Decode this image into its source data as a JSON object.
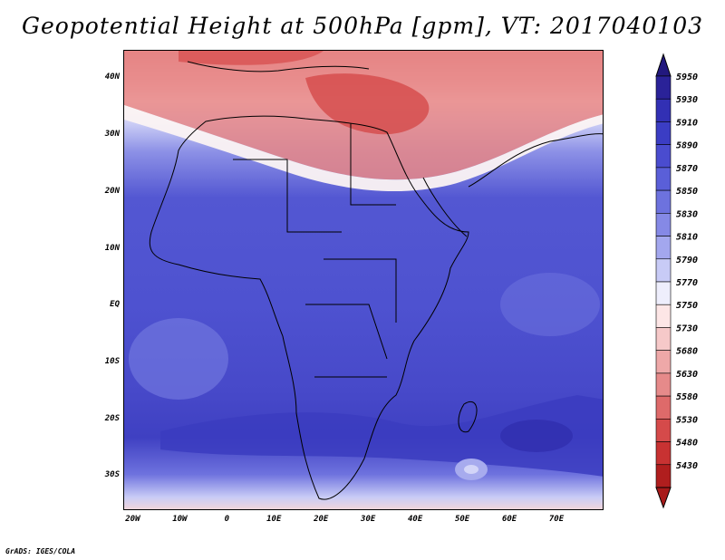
{
  "title": "Geopotential Height at 500hPa [gpm], VT: 2017040103",
  "credit": "GrADS: IGES/COLA",
  "lat_labels": [
    "40N",
    "30N",
    "20N",
    "10N",
    "EQ",
    "10S",
    "20S",
    "30S"
  ],
  "lat_values": [
    40,
    30,
    20,
    10,
    0,
    -10,
    -20,
    -30
  ],
  "lon_labels": [
    "20W",
    "10W",
    "0",
    "10E",
    "20E",
    "30E",
    "40E",
    "50E",
    "60E",
    "70E"
  ],
  "lon_values": [
    -20,
    -10,
    0,
    10,
    20,
    30,
    40,
    50,
    60,
    70
  ],
  "map_extent": {
    "lon_min": -22,
    "lon_max": 80,
    "lat_min": -36,
    "lat_max": 45
  },
  "colorbar": {
    "labels": [
      "5950",
      "5930",
      "5910",
      "5890",
      "5870",
      "5850",
      "5830",
      "5810",
      "5790",
      "5770",
      "5750",
      "5730",
      "5680",
      "5630",
      "5580",
      "5530",
      "5480",
      "5430"
    ],
    "colors": [
      "#2a2298",
      "#3230b4",
      "#3b3dc4",
      "#4a4ccf",
      "#5a5fd8",
      "#6d72de",
      "#8589e6",
      "#a3a7ee",
      "#c8cbf6",
      "#eeeefc",
      "#fde6e6",
      "#f6c9c9",
      "#eea8a8",
      "#e68a8a",
      "#de6a6a",
      "#d54a4a",
      "#c83232",
      "#b01e1e"
    ],
    "top_arrow_color": "#22187e",
    "bottom_arrow_color": "#a81a1a"
  }
}
